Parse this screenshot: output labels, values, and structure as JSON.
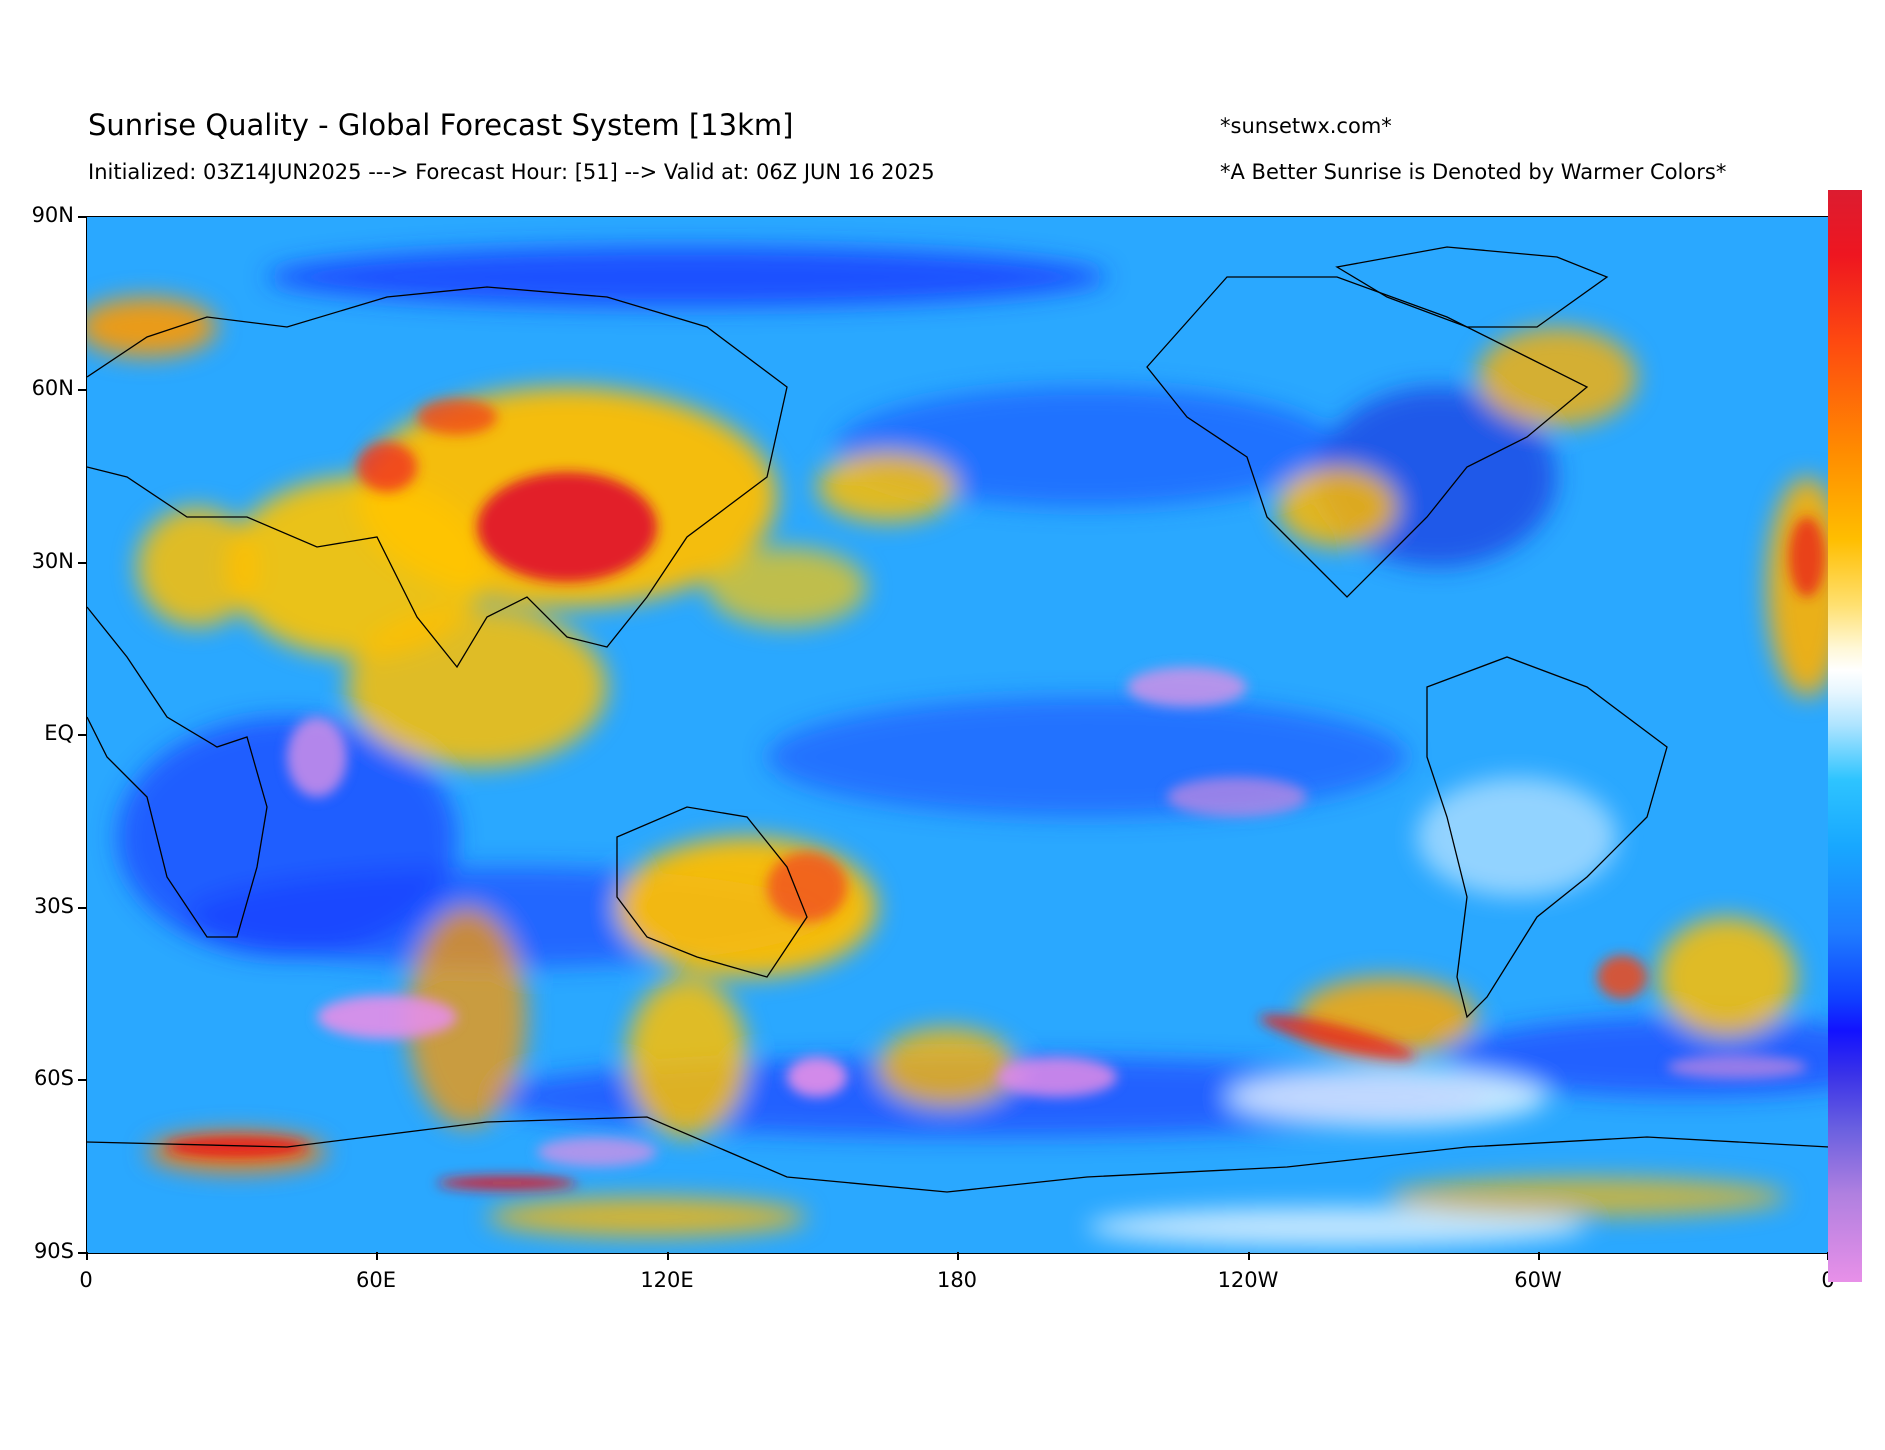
{
  "header": {
    "title": "Sunrise Quality - Global Forecast System [13km]",
    "subtitle": "Initialized: 03Z14JUN2025 ---> Forecast Hour: [51] --> Valid at: 06Z JUN 16 2025",
    "site": "*sunsetwx.com*",
    "note": "*A Better Sunrise is Denoted by Warmer Colors*"
  },
  "axes": {
    "y_ticks": [
      "90N",
      "60N",
      "30N",
      "EQ",
      "30S",
      "60S",
      "90S"
    ],
    "x_ticks": [
      "0",
      "60E",
      "120E",
      "180",
      "120W",
      "60W",
      "0"
    ]
  },
  "colorbar": {
    "colors": [
      "#dc1c30",
      "#ff8c00",
      "#ffbe00",
      "#ffffff",
      "#2ec4ff",
      "#1212ff",
      "#e890e8"
    ]
  }
}
